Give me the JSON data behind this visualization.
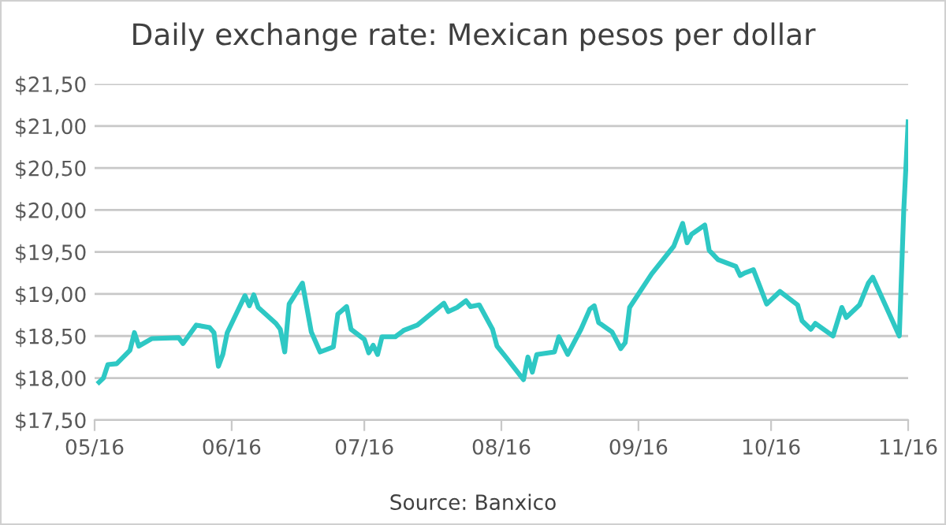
{
  "chart_data": {
    "type": "line",
    "title": "Daily exchange rate: Mexican pesos per dollar",
    "annotations": [
      "Source: Banxico"
    ],
    "x": [
      "2016-05-02",
      "2016-05-03",
      "2016-05-04",
      "2016-05-06",
      "2016-05-09",
      "2016-05-10",
      "2016-05-11",
      "2016-05-14",
      "2016-05-20",
      "2016-05-21",
      "2016-05-24",
      "2016-05-27",
      "2016-05-28",
      "2016-05-29",
      "2016-05-30",
      "2016-05-31",
      "2016-06-02",
      "2016-06-04",
      "2016-06-05",
      "2016-06-06",
      "2016-06-07",
      "2016-06-11",
      "2016-06-12",
      "2016-06-13",
      "2016-06-14",
      "2016-06-17",
      "2016-06-19",
      "2016-06-21",
      "2016-06-24",
      "2016-06-25",
      "2016-06-27",
      "2016-06-28",
      "2016-07-01",
      "2016-07-02",
      "2016-07-03",
      "2016-07-04",
      "2016-07-05",
      "2016-07-08",
      "2016-07-10",
      "2016-07-13",
      "2016-07-19",
      "2016-07-20",
      "2016-07-22",
      "2016-07-24",
      "2016-07-25",
      "2016-07-27",
      "2016-07-30",
      "2016-07-31",
      "2016-08-02",
      "2016-08-06",
      "2016-08-07",
      "2016-08-08",
      "2016-08-09",
      "2016-08-13",
      "2016-08-14",
      "2016-08-16",
      "2016-08-19",
      "2016-08-21",
      "2016-08-22",
      "2016-08-23",
      "2016-08-26",
      "2016-08-28",
      "2016-08-29",
      "2016-08-30",
      "2016-09-04",
      "2016-09-09",
      "2016-09-11",
      "2016-09-12",
      "2016-09-13",
      "2016-09-16",
      "2016-09-17",
      "2016-09-19",
      "2016-09-23",
      "2016-09-24",
      "2016-09-25",
      "2016-09-27",
      "2016-09-30",
      "2016-10-03",
      "2016-10-07",
      "2016-10-08",
      "2016-10-10",
      "2016-10-11",
      "2016-10-15",
      "2016-10-17",
      "2016-10-18",
      "2016-10-21",
      "2016-10-23",
      "2016-10-24",
      "2016-10-30",
      "2016-10-31",
      "2016-11-01"
    ],
    "series": [
      {
        "color": "#2ec8c4",
        "values": [
          17.95,
          18.0,
          18.16,
          18.17,
          18.33,
          18.54,
          18.38,
          18.47,
          18.48,
          18.41,
          18.63,
          18.6,
          18.54,
          18.14,
          18.28,
          18.54,
          18.76,
          18.98,
          18.86,
          18.99,
          18.84,
          18.65,
          18.58,
          18.31,
          18.88,
          19.13,
          18.55,
          18.31,
          18.37,
          18.76,
          18.85,
          18.58,
          18.46,
          18.3,
          18.39,
          18.28,
          18.49,
          18.49,
          18.57,
          18.63,
          18.89,
          18.79,
          18.84,
          18.92,
          18.85,
          18.87,
          18.58,
          18.38,
          18.25,
          17.98,
          18.25,
          18.07,
          18.28,
          18.31,
          18.49,
          18.28,
          18.58,
          18.82,
          18.86,
          18.66,
          18.55,
          18.35,
          18.42,
          18.84,
          19.24,
          19.57,
          19.84,
          19.61,
          19.71,
          19.82,
          19.52,
          19.41,
          19.33,
          19.22,
          19.25,
          19.29,
          18.88,
          19.03,
          18.87,
          18.68,
          18.58,
          18.65,
          18.5,
          18.84,
          18.72,
          18.87,
          19.13,
          19.2,
          18.5,
          19.99,
          21.05
        ]
      }
    ],
    "xlim": [
      "2016-05-01",
      "2016-11-01"
    ],
    "xticks": [
      {
        "value": "2016-05-01",
        "label": "05/16"
      },
      {
        "value": "2016-06-01",
        "label": "06/16"
      },
      {
        "value": "2016-07-01",
        "label": "07/16"
      },
      {
        "value": "2016-08-01",
        "label": "08/16"
      },
      {
        "value": "2016-09-01",
        "label": "09/16"
      },
      {
        "value": "2016-10-01",
        "label": "10/16"
      },
      {
        "value": "2016-11-01",
        "label": "11/16"
      }
    ],
    "ylim": [
      17.5,
      21.5
    ],
    "yticks": [
      {
        "value": 17.5,
        "label": "$17,50"
      },
      {
        "value": 18,
        "label": "$18,00"
      },
      {
        "value": 18.5,
        "label": "$18,50"
      },
      {
        "value": 19,
        "label": "$19,00"
      },
      {
        "value": 19.5,
        "label": "$19,50"
      },
      {
        "value": 20,
        "label": "$20,00"
      },
      {
        "value": 20.5,
        "label": "$20,50"
      },
      {
        "value": 21,
        "label": "$21,00"
      },
      {
        "value": 21.5,
        "label": "$21,50"
      }
    ],
    "grid": "y",
    "marker": "none",
    "line_style": "solid"
  }
}
